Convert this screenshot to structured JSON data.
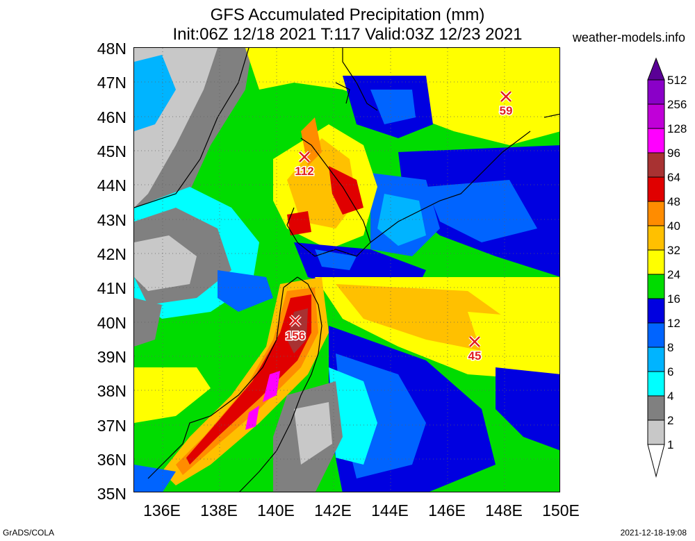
{
  "header": {
    "title_line1": "GFS Accumulated Precipitation (mm)",
    "title_line2": "Init:06Z 12/18 2021 T:117 Valid:03Z 12/23 2021",
    "site": "weather-models.info"
  },
  "axes": {
    "lat_labels": [
      "48N",
      "47N",
      "46N",
      "45N",
      "44N",
      "43N",
      "42N",
      "41N",
      "40N",
      "39N",
      "38N",
      "37N",
      "36N",
      "35N"
    ],
    "lon_labels": [
      "136E",
      "138E",
      "140E",
      "142E",
      "144E",
      "146E",
      "148E",
      "150E"
    ]
  },
  "legend": {
    "levels": [
      "512",
      "256",
      "128",
      "96",
      "64",
      "48",
      "40",
      "32",
      "24",
      "16",
      "12",
      "8",
      "6",
      "4",
      "2",
      "1"
    ],
    "colors": [
      "#8a00c8",
      "#c000d8",
      "#ff00ff",
      "#a83232",
      "#e00000",
      "#ff8c00",
      "#ffc000",
      "#ffff00",
      "#00dc00",
      "#0000e0",
      "#0064ff",
      "#00b4ff",
      "#00ffff",
      "#808080",
      "#c8c8c8",
      "#ffffff"
    ]
  },
  "markers": [
    {
      "label": "112"
    },
    {
      "label": "156"
    },
    {
      "label": "59"
    },
    {
      "label": "45"
    }
  ],
  "footer": {
    "left": "GrADS/COLA",
    "right": "2021-12-18-19:08"
  }
}
